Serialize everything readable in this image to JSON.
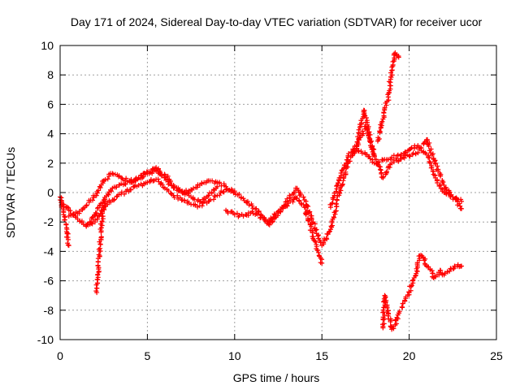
{
  "chart_data": {
    "type": "scatter",
    "title": "Day 171 of 2024, Sidereal Day-to-day VTEC variation (SDTVAR) for receiver ucor",
    "xlabel": "GPS time / hours",
    "ylabel": "SDTVAR / TECUs",
    "xlim": [
      0,
      25
    ],
    "ylim": [
      -10,
      10
    ],
    "xticks": [
      0,
      5,
      10,
      15,
      20,
      25
    ],
    "yticks": [
      -10,
      -8,
      -6,
      -4,
      -2,
      0,
      2,
      4,
      6,
      8,
      10
    ],
    "grid": true,
    "marker": "plus",
    "color": "#ff0000",
    "series": [
      {
        "x": [
          0.0,
          0.5,
          1.0,
          1.5,
          2.0,
          2.5,
          3.0,
          3.5,
          4.0,
          4.5,
          5.0,
          5.5,
          6.0,
          6.5,
          7.0,
          7.5,
          8.0,
          8.5,
          9.0,
          9.5,
          10.0,
          10.5,
          11.0,
          11.5,
          12.0,
          12.5,
          13.0,
          13.5,
          14.0,
          14.5,
          15.0,
          15.5,
          16.0,
          16.5,
          17.0,
          17.5,
          18.0,
          18.5,
          19.0,
          19.5,
          20.0,
          20.5,
          21.0,
          21.5,
          22.0,
          22.5,
          23.0
        ],
        "y": [
          -0.5,
          -1.2,
          -1.8,
          -2.3,
          -1.5,
          -0.5,
          0.3,
          0.6,
          0.7,
          1.0,
          1.3,
          1.5,
          1.0,
          0.3,
          0.0,
          0.2,
          0.5,
          0.8,
          0.7,
          0.4,
          0.0,
          -0.4,
          -0.9,
          -1.5,
          -2.2,
          -1.4,
          -0.6,
          0.3,
          -0.5,
          -2.0,
          -3.6,
          -2.5,
          0.0,
          2.0,
          3.0,
          2.6,
          2.0,
          2.2,
          2.4,
          2.5,
          2.9,
          3.2,
          2.6,
          1.0,
          0.0,
          -0.3,
          -0.6
        ]
      },
      {
        "x": [
          0.0,
          0.2,
          0.4,
          0.5
        ],
        "y": [
          -0.3,
          -1.5,
          -2.8,
          -3.6
        ]
      },
      {
        "x": [
          2.1,
          2.2,
          2.3,
          2.4,
          2.5,
          2.6
        ],
        "y": [
          -6.8,
          -5.2,
          -3.5,
          -2.0,
          -1.0,
          -0.6
        ]
      },
      {
        "x": [
          0.5,
          1.0,
          1.5,
          2.0,
          2.5,
          3.0,
          3.5,
          4.0,
          4.5,
          5.0,
          5.5,
          6.0,
          6.5,
          7.0,
          7.5,
          8.0,
          8.5,
          9.0
        ],
        "y": [
          -1.6,
          -1.4,
          -0.9,
          -0.2,
          0.8,
          1.3,
          1.0,
          0.8,
          1.0,
          1.4,
          1.7,
          1.2,
          0.5,
          0.1,
          -0.3,
          -0.6,
          -0.2,
          0.4
        ]
      },
      {
        "x": [
          1.5,
          2.0,
          2.5,
          3.0,
          3.5,
          4.0,
          4.5,
          5.0,
          5.5,
          6.0,
          6.5,
          7.0,
          7.5,
          8.0,
          8.5,
          9.0,
          9.5,
          10.0
        ],
        "y": [
          -2.2,
          -2.0,
          -1.0,
          -0.5,
          -0.1,
          0.2,
          0.5,
          0.7,
          0.9,
          0.3,
          -0.2,
          -0.5,
          -0.8,
          -0.9,
          -0.6,
          -0.2,
          0.2,
          0.1
        ]
      },
      {
        "x": [
          9.5,
          10.0,
          10.5,
          11.0,
          11.5,
          12.0,
          12.5,
          13.0,
          13.5,
          14.0,
          14.5,
          15.0
        ],
        "y": [
          -1.2,
          -1.5,
          -1.6,
          -1.3,
          -1.7,
          -2.0,
          -1.3,
          -0.9,
          -0.3,
          -1.0,
          -3.0,
          -4.8
        ]
      },
      {
        "x": [
          15.5,
          16.0,
          16.5,
          17.0,
          17.5,
          18.0,
          18.5,
          19.0,
          19.5,
          20.0,
          20.5,
          21.0,
          21.5,
          22.0,
          22.5,
          23.0
        ],
        "y": [
          -1.0,
          1.0,
          2.5,
          3.2,
          4.5,
          2.5,
          1.0,
          2.0,
          2.3,
          2.5,
          2.7,
          3.6,
          2.0,
          0.5,
          -0.3,
          -1.1
        ]
      },
      {
        "x": [
          17.0,
          17.2,
          17.4,
          17.6,
          17.8,
          18.0
        ],
        "y": [
          3.0,
          4.5,
          5.6,
          4.6,
          3.5,
          2.6
        ]
      },
      {
        "x": [
          18.2,
          18.5,
          18.8,
          19.0,
          19.2,
          19.4
        ],
        "y": [
          3.5,
          5.0,
          6.5,
          8.3,
          9.5,
          9.2
        ]
      },
      {
        "x": [
          18.5,
          18.6,
          18.8,
          19.0,
          19.2,
          19.4,
          19.6,
          19.8,
          20.0,
          20.2,
          20.4,
          20.6,
          20.8,
          21.0,
          21.2,
          21.4,
          21.6,
          21.8,
          22.0,
          22.2,
          22.4,
          22.6,
          22.8,
          23.0
        ],
        "y": [
          -9.2,
          -7.0,
          -8.2,
          -9.3,
          -9.0,
          -8.2,
          -7.8,
          -7.2,
          -6.8,
          -6.0,
          -5.5,
          -4.3,
          -4.4,
          -5.0,
          -5.2,
          -5.8,
          -5.6,
          -5.3,
          -5.6,
          -5.4,
          -5.2,
          -5.0,
          -4.9,
          -5.0
        ]
      }
    ]
  }
}
